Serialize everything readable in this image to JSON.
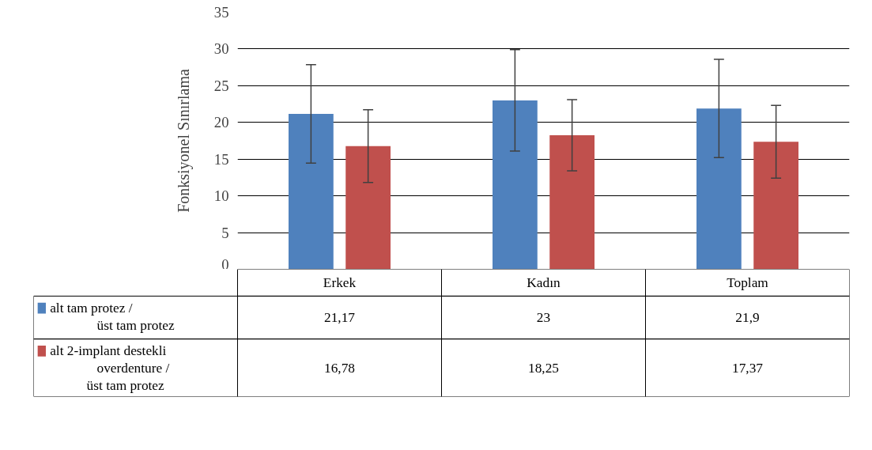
{
  "chart_data": {
    "type": "bar",
    "ylabel": "Fonksiyonel Sınırlama",
    "categories": [
      "Erkek",
      "Kadın",
      "Toplam"
    ],
    "series": [
      {
        "name": "alt tam protez / üst tam protez",
        "color": "#4f81bd",
        "values": [
          21.17,
          23,
          21.9
        ],
        "errors": [
          6.7,
          6.9,
          6.7
        ],
        "value_labels": [
          "21,17",
          "23",
          "21,9"
        ]
      },
      {
        "name": "alt 2-implant destekli overdenture / üst tam protez",
        "color": "#c0504d",
        "values": [
          16.78,
          18.25,
          17.37
        ],
        "errors": [
          4.95,
          4.85,
          4.95
        ],
        "value_labels": [
          "16,78",
          "18,25",
          "17,37"
        ]
      }
    ],
    "ylim": [
      0,
      35
    ],
    "yticks": [
      0,
      5,
      10,
      15,
      20,
      25,
      30,
      35
    ],
    "grid": "y",
    "legend": "bottom left"
  }
}
